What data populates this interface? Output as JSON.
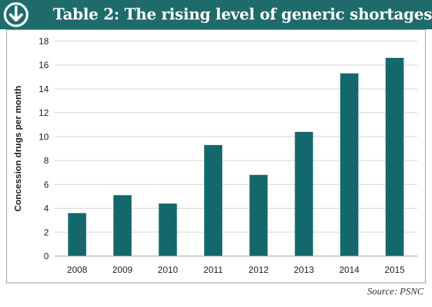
{
  "header": {
    "title": "Table 2: The rising level of generic shortages",
    "icon": "down-arrow-circle-icon"
  },
  "source": "Source: PSNC",
  "colors": {
    "header_bg": "#1f6b6b",
    "bar": "#14676a",
    "grid": "#d4d4d4"
  },
  "chart_data": {
    "type": "bar",
    "title": "",
    "xlabel": "",
    "ylabel": "Concession drugs per month",
    "categories": [
      "2008",
      "2009",
      "2010",
      "2011",
      "2012",
      "2013",
      "2014",
      "2015"
    ],
    "values": [
      3.6,
      5.1,
      4.4,
      9.3,
      6.8,
      10.4,
      15.3,
      16.6
    ],
    "ylim": [
      0,
      18
    ],
    "yticks": [
      0,
      2,
      4,
      6,
      8,
      10,
      12,
      14,
      16,
      18
    ],
    "grid": true,
    "legend": "none"
  }
}
